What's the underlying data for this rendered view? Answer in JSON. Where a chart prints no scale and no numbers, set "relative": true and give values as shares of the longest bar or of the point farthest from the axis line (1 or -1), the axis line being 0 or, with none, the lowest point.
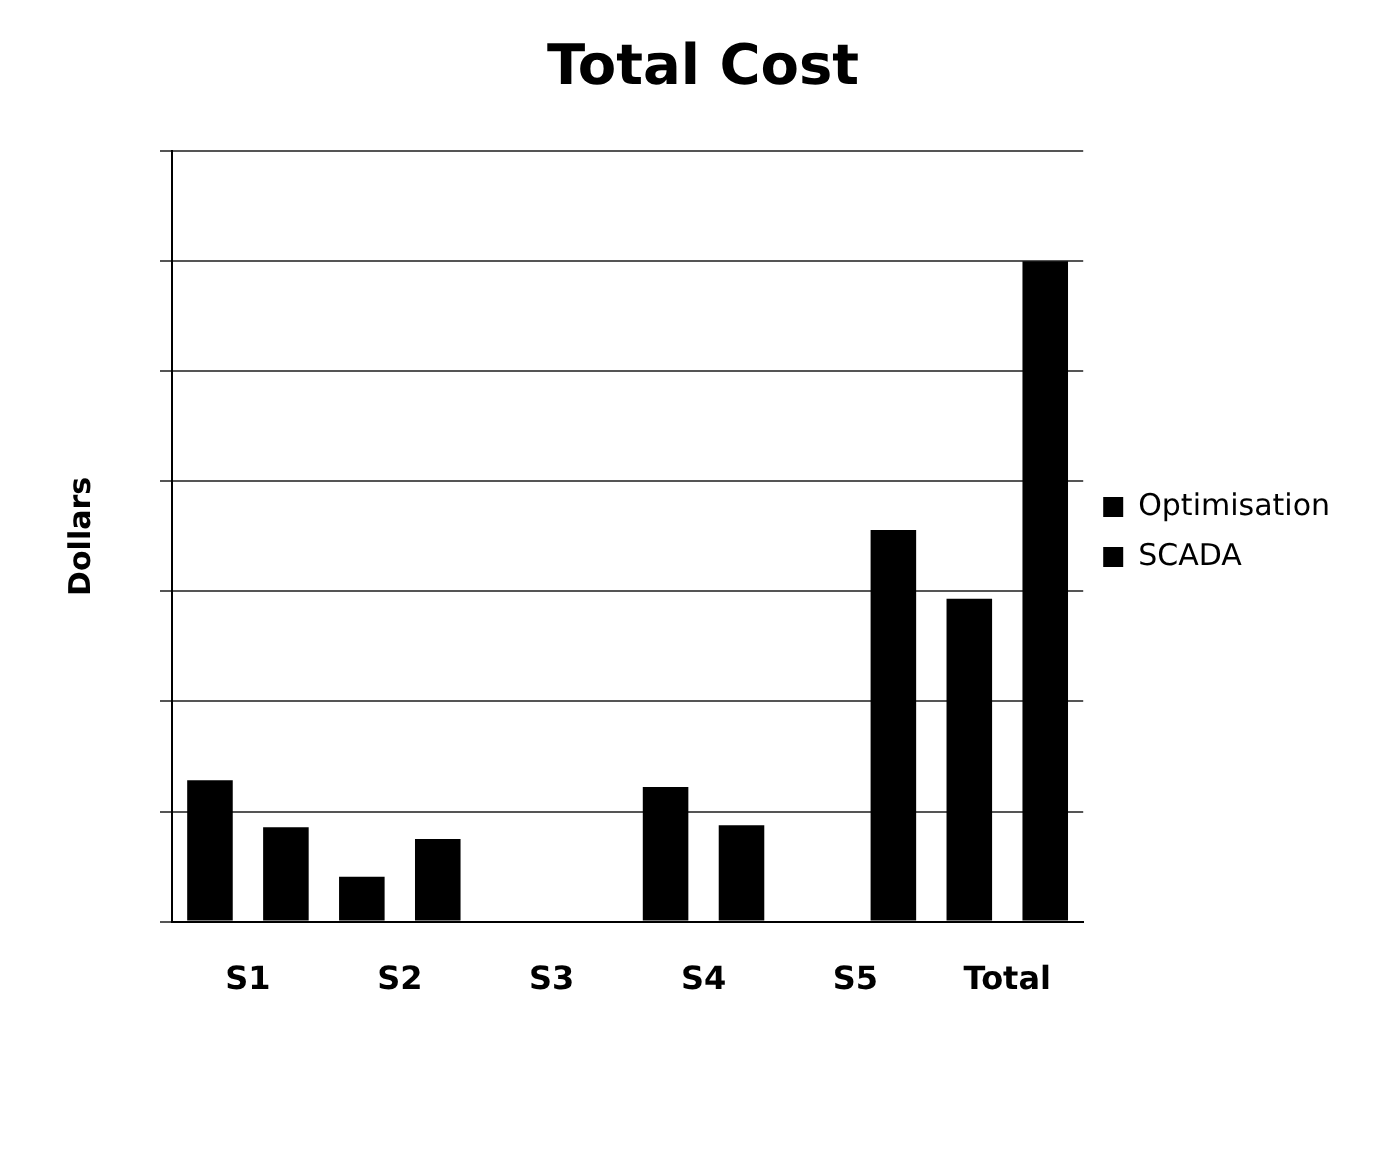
{
  "chart_data": {
    "type": "bar",
    "title": "Total Cost",
    "ylabel": "Dollars",
    "categories": [
      "S1",
      "S2",
      "S3",
      "S4",
      "S5",
      "Total"
    ],
    "relative": true,
    "grid": "y",
    "legend": "right",
    "tick_labels": "x",
    "series": [
      {
        "name": "Optimisation",
        "color": "#000000",
        "values": [
          0.214,
          0.068,
          0,
          0.204,
          0,
          0.489
        ]
      },
      {
        "name": "SCADA",
        "color": "#000000",
        "values": [
          0.143,
          0.125,
          0,
          0.146,
          0.593,
          1
        ]
      }
    ]
  }
}
